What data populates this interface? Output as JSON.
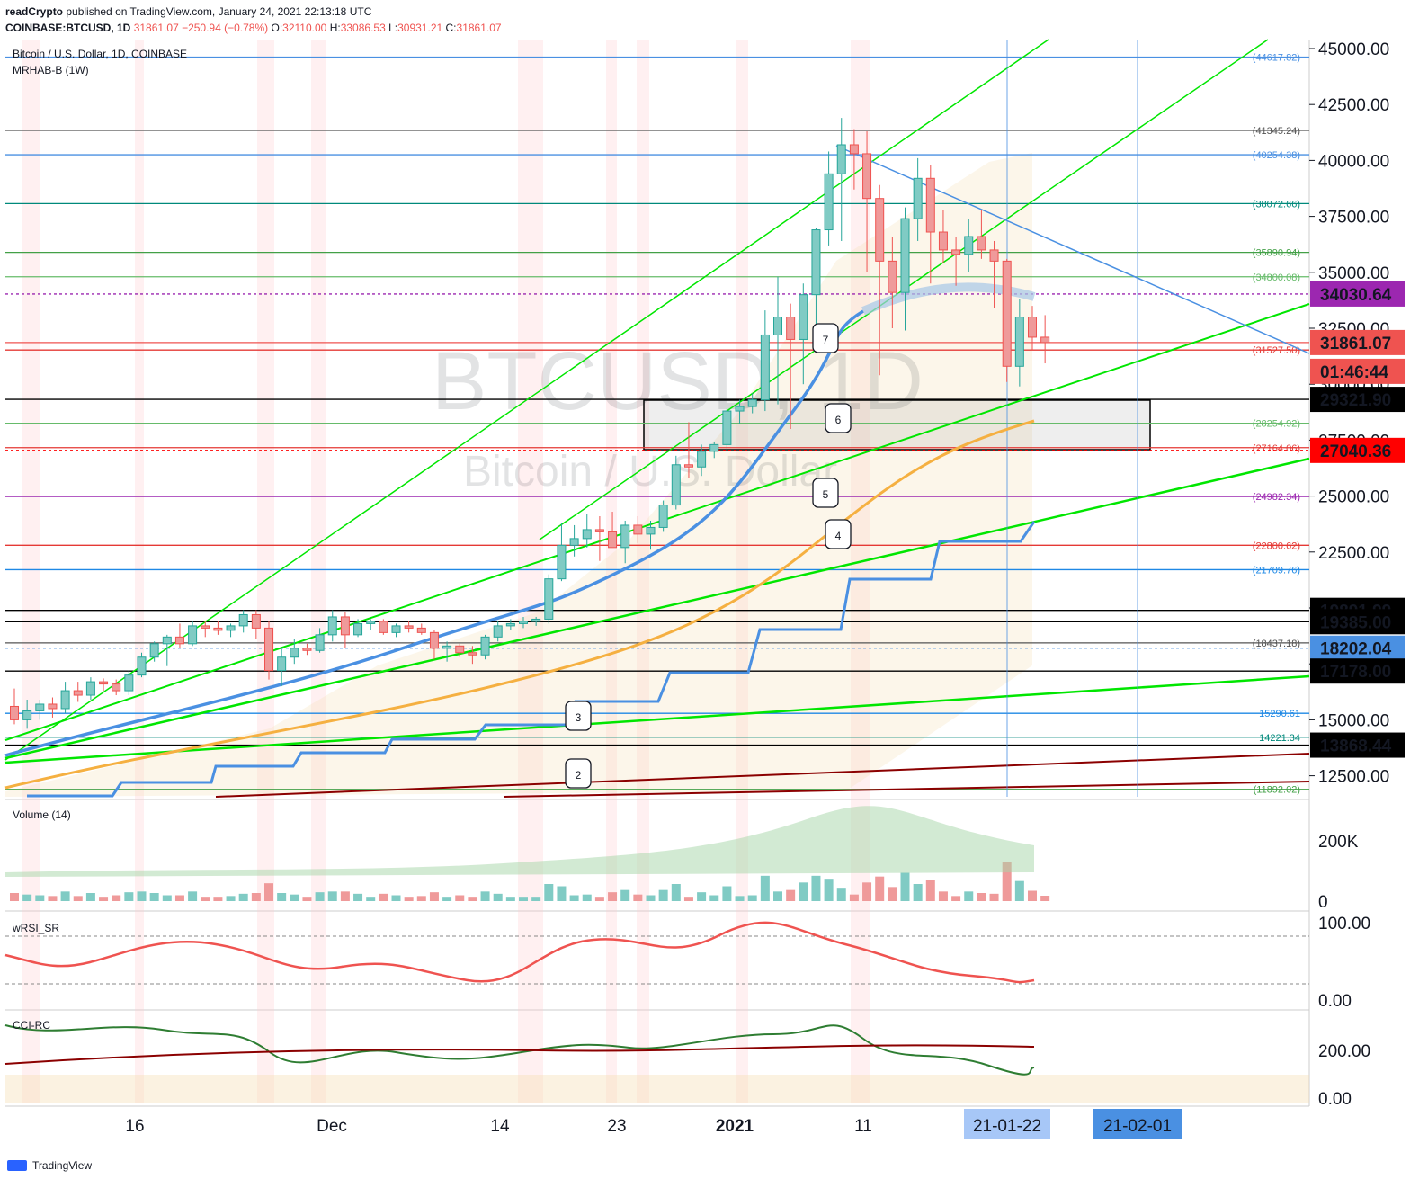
{
  "header": {
    "publisher": "readCrypto",
    "published_text": "published on TradingView.com, January 24, 2021 22:13:18 UTC",
    "symbol": "COINBASE:BTCUSD, 1D",
    "change": "31861.07  −250.94 (−0.78%)",
    "o_label": "O:",
    "o_value": "32110.00",
    "h_label": "H:",
    "h_value": "33086.53",
    "l_label": "L:",
    "l_value": "30931.21",
    "c_label": "C:",
    "c_value": "31861.07"
  },
  "legend": {
    "title": "Bitcoin / U.S. Dollar, 1D, COINBASE",
    "indicator": "MRHAB-B (1W)",
    "volume": "Volume (14)",
    "wrsi": "wRSI_SR",
    "cci": "CCI-RC"
  },
  "watermark": {
    "symbol": "BTCUSD, 1D",
    "name": "Bitcoin / U.S. Dollar"
  },
  "footer": {
    "brand": "TradingView"
  },
  "colors": {
    "up": "#26a69a",
    "down": "#ef5350",
    "green_line": "#00e600",
    "blue_line": "#4a90e2",
    "purple": "#9c27b0",
    "orange": "#f5b041",
    "dark_red": "#8b0000"
  },
  "chart_data": {
    "type": "candlestick",
    "ylim": [
      11500,
      45500
    ],
    "x_ticks": [
      "16",
      "Dec",
      "14",
      "23",
      "2021",
      "11",
      "21-01-22",
      "21-02-01"
    ],
    "y_ticks": [
      "45000.00",
      "42500.00",
      "40000.00",
      "37500.00",
      "35000.00",
      "32500.00",
      "30000.00",
      "27500.00",
      "25000.00",
      "22500.00",
      "20000.00",
      "17500.00",
      "15000.00",
      "12500.00"
    ],
    "price_tags": [
      {
        "label": "34030.64",
        "value": 34030.64,
        "color": "#9c27b0"
      },
      {
        "label": "31861.07",
        "value": 31861.07,
        "color": "#ef5350"
      },
      {
        "label": "01:46:44",
        "value": null,
        "color": "#ef5350"
      },
      {
        "label": "29321.90",
        "value": 29321.9,
        "color": "#000000"
      },
      {
        "label": "27040.36",
        "value": 27040.36,
        "color": "#ff0000"
      },
      {
        "label": "19891.99",
        "value": 19891.99,
        "color": "#000000"
      },
      {
        "label": "19385.00",
        "value": 19385.0,
        "color": "#000000"
      },
      {
        "label": "18202.04",
        "value": 18202.04,
        "color": "#4a90e2"
      },
      {
        "label": "17178.00",
        "value": 17178.0,
        "color": "#000000"
      },
      {
        "label": "13868.44",
        "value": 13868.44,
        "color": "#000000"
      }
    ],
    "levels": [
      {
        "label": "(44617.82)",
        "value": 44617.82,
        "color": "#4a90e2"
      },
      {
        "label": "(41345.24)",
        "value": 41345.24,
        "color": "#555555"
      },
      {
        "label": "(40254.38)",
        "value": 40254.38,
        "color": "#4a90e2"
      },
      {
        "label": "(38072.66)",
        "value": 38072.66,
        "color": "#00897b"
      },
      {
        "label": "(35890.94)",
        "value": 35890.94,
        "color": "#43a047"
      },
      {
        "label": "(34800.08)",
        "value": 34800.08,
        "color": "#66bb6a"
      },
      {
        "label": "(31527.50)",
        "value": 31527.5,
        "color": "#e53935"
      },
      {
        "label": "(28254.92)",
        "value": 28254.92,
        "color": "#66bb6a"
      },
      {
        "label": "(27164.06)",
        "value": 27164.06,
        "color": "#e53935"
      },
      {
        "label": "(24982.34)",
        "value": 24982.34,
        "color": "#9c27b0"
      },
      {
        "label": "(22800.62)",
        "value": 22800.62,
        "color": "#e53935"
      },
      {
        "label": "(21709.76)",
        "value": 21709.76,
        "color": "#1e88e5"
      },
      {
        "label": "(18437.18)",
        "value": 18437.18,
        "color": "#555555"
      },
      {
        "label": "15290.61",
        "value": 15290.61,
        "color": "#1e88e5"
      },
      {
        "label": "14221.34",
        "value": 14221.34,
        "color": "#00897b"
      },
      {
        "label": "(11892.02)",
        "value": 11892.02,
        "color": "#43a047"
      }
    ],
    "wave_labels": [
      "2",
      "3",
      "4",
      "5",
      "6",
      "7"
    ],
    "candles": [
      {
        "o": 15600,
        "h": 16400,
        "l": 14800,
        "c": 15000
      },
      {
        "o": 15000,
        "h": 15900,
        "l": 14600,
        "c": 15400
      },
      {
        "o": 15400,
        "h": 15900,
        "l": 15000,
        "c": 15700
      },
      {
        "o": 15700,
        "h": 16000,
        "l": 15100,
        "c": 15500
      },
      {
        "o": 15500,
        "h": 16700,
        "l": 15300,
        "c": 16300
      },
      {
        "o": 16300,
        "h": 16700,
        "l": 15800,
        "c": 16100
      },
      {
        "o": 16100,
        "h": 16900,
        "l": 15900,
        "c": 16700
      },
      {
        "o": 16700,
        "h": 16850,
        "l": 16300,
        "c": 16600
      },
      {
        "o": 16600,
        "h": 16800,
        "l": 16100,
        "c": 16300
      },
      {
        "o": 16300,
        "h": 17200,
        "l": 16100,
        "c": 17000
      },
      {
        "o": 17000,
        "h": 18000,
        "l": 16900,
        "c": 17800
      },
      {
        "o": 17800,
        "h": 18500,
        "l": 17600,
        "c": 18400
      },
      {
        "o": 18400,
        "h": 18800,
        "l": 17400,
        "c": 18700
      },
      {
        "o": 18700,
        "h": 19300,
        "l": 18200,
        "c": 18400
      },
      {
        "o": 18400,
        "h": 19400,
        "l": 18300,
        "c": 19200
      },
      {
        "o": 19200,
        "h": 19400,
        "l": 18700,
        "c": 19100
      },
      {
        "o": 19100,
        "h": 19400,
        "l": 18800,
        "c": 19000
      },
      {
        "o": 19000,
        "h": 19300,
        "l": 18700,
        "c": 19200
      },
      {
        "o": 19200,
        "h": 19900,
        "l": 18900,
        "c": 19700
      },
      {
        "o": 19700,
        "h": 19900,
        "l": 18600,
        "c": 19100
      },
      {
        "o": 19100,
        "h": 19400,
        "l": 16800,
        "c": 17200
      },
      {
        "o": 17200,
        "h": 18200,
        "l": 16500,
        "c": 17800
      },
      {
        "o": 17800,
        "h": 18600,
        "l": 17500,
        "c": 18200
      },
      {
        "o": 18200,
        "h": 18400,
        "l": 17900,
        "c": 18100
      },
      {
        "o": 18100,
        "h": 19100,
        "l": 18000,
        "c": 18800
      },
      {
        "o": 18800,
        "h": 19900,
        "l": 18500,
        "c": 19600
      },
      {
        "o": 19600,
        "h": 19800,
        "l": 18200,
        "c": 18800
      },
      {
        "o": 18800,
        "h": 19500,
        "l": 18700,
        "c": 19300
      },
      {
        "o": 19300,
        "h": 19500,
        "l": 19000,
        "c": 19400
      },
      {
        "o": 19400,
        "h": 19500,
        "l": 18800,
        "c": 18900
      },
      {
        "o": 18900,
        "h": 19300,
        "l": 18700,
        "c": 19200
      },
      {
        "o": 19200,
        "h": 19400,
        "l": 18900,
        "c": 19100
      },
      {
        "o": 19100,
        "h": 19300,
        "l": 18800,
        "c": 18900
      },
      {
        "o": 18900,
        "h": 19000,
        "l": 17700,
        "c": 18200
      },
      {
        "o": 18200,
        "h": 18500,
        "l": 17600,
        "c": 18300
      },
      {
        "o": 18300,
        "h": 18400,
        "l": 17800,
        "c": 18000
      },
      {
        "o": 18000,
        "h": 18300,
        "l": 17500,
        "c": 17900
      },
      {
        "o": 17900,
        "h": 18800,
        "l": 17700,
        "c": 18700
      },
      {
        "o": 18700,
        "h": 19400,
        "l": 18500,
        "c": 19200
      },
      {
        "o": 19200,
        "h": 19500,
        "l": 19000,
        "c": 19300
      },
      {
        "o": 19300,
        "h": 19600,
        "l": 19100,
        "c": 19400
      },
      {
        "o": 19400,
        "h": 19600,
        "l": 19200,
        "c": 19500
      },
      {
        "o": 19500,
        "h": 21500,
        "l": 19300,
        "c": 21300
      },
      {
        "o": 21300,
        "h": 23800,
        "l": 21200,
        "c": 22800
      },
      {
        "o": 22800,
        "h": 23700,
        "l": 22300,
        "c": 23100
      },
      {
        "o": 23100,
        "h": 24200,
        "l": 22700,
        "c": 23500
      },
      {
        "o": 23500,
        "h": 24100,
        "l": 22100,
        "c": 23400
      },
      {
        "o": 23400,
        "h": 24300,
        "l": 22900,
        "c": 22700
      },
      {
        "o": 22700,
        "h": 23900,
        "l": 22000,
        "c": 23700
      },
      {
        "o": 23700,
        "h": 24100,
        "l": 22900,
        "c": 23300
      },
      {
        "o": 23300,
        "h": 23900,
        "l": 22600,
        "c": 23600
      },
      {
        "o": 23600,
        "h": 24800,
        "l": 23400,
        "c": 24600
      },
      {
        "o": 24600,
        "h": 26800,
        "l": 24400,
        "c": 26400
      },
      {
        "o": 26400,
        "h": 28300,
        "l": 25800,
        "c": 26300
      },
      {
        "o": 26300,
        "h": 27300,
        "l": 25900,
        "c": 27000
      },
      {
        "o": 27000,
        "h": 27400,
        "l": 26700,
        "c": 27300
      },
      {
        "o": 27300,
        "h": 28900,
        "l": 27000,
        "c": 28800
      },
      {
        "o": 28800,
        "h": 29300,
        "l": 28200,
        "c": 29000
      },
      {
        "o": 29000,
        "h": 29600,
        "l": 28700,
        "c": 29300
      },
      {
        "o": 29300,
        "h": 33300,
        "l": 28800,
        "c": 32200
      },
      {
        "o": 32200,
        "h": 34800,
        "l": 29100,
        "c": 33000
      },
      {
        "o": 33000,
        "h": 33600,
        "l": 28000,
        "c": 32000
      },
      {
        "o": 32000,
        "h": 34500,
        "l": 30000,
        "c": 34000
      },
      {
        "o": 34000,
        "h": 37000,
        "l": 32000,
        "c": 36900
      },
      {
        "o": 36900,
        "h": 40400,
        "l": 36200,
        "c": 39400
      },
      {
        "o": 39400,
        "h": 41900,
        "l": 36400,
        "c": 40700
      },
      {
        "o": 40700,
        "h": 41400,
        "l": 38700,
        "c": 40300
      },
      {
        "o": 40300,
        "h": 41300,
        "l": 35000,
        "c": 38300
      },
      {
        "o": 38300,
        "h": 38900,
        "l": 30400,
        "c": 35500
      },
      {
        "o": 35500,
        "h": 36600,
        "l": 32500,
        "c": 34100
      },
      {
        "o": 34100,
        "h": 37900,
        "l": 32400,
        "c": 37400
      },
      {
        "o": 37400,
        "h": 40100,
        "l": 36400,
        "c": 39200
      },
      {
        "o": 39200,
        "h": 39800,
        "l": 34500,
        "c": 36800
      },
      {
        "o": 36800,
        "h": 37800,
        "l": 35400,
        "c": 36000
      },
      {
        "o": 36000,
        "h": 36600,
        "l": 34400,
        "c": 35800
      },
      {
        "o": 35800,
        "h": 37400,
        "l": 35000,
        "c": 36600
      },
      {
        "o": 36600,
        "h": 37800,
        "l": 35600,
        "c": 36000
      },
      {
        "o": 36000,
        "h": 36400,
        "l": 33400,
        "c": 35500
      },
      {
        "o": 35500,
        "h": 35600,
        "l": 30100,
        "c": 30800
      },
      {
        "o": 30800,
        "h": 33800,
        "l": 29900,
        "c": 33000
      },
      {
        "o": 33000,
        "h": 33500,
        "l": 31500,
        "c": 32100
      },
      {
        "o": 32100,
        "h": 33086.53,
        "l": 30931.21,
        "c": 31861.07
      }
    ],
    "volume_ticks": [
      "200K",
      "0"
    ],
    "wrsi_ticks": [
      "100.00",
      "0.00"
    ],
    "cci_ticks": [
      "200.00",
      "0.00"
    ]
  }
}
